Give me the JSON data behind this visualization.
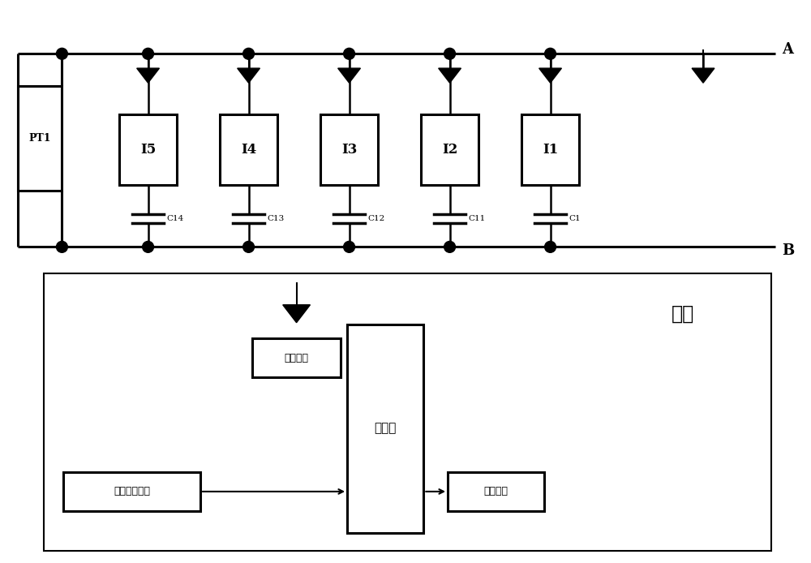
{
  "fig_width": 10.0,
  "fig_height": 6.94,
  "bg_color": "#ffffff",
  "line_color": "#000000",
  "box_fill": "#ffffff",
  "title_A": "A",
  "title_B": "B",
  "pt1_label": "PT1",
  "sensor_labels": [
    "I5",
    "I4",
    "I3",
    "I2",
    "I1"
  ],
  "cap_labels": [
    "C14",
    "C13",
    "C12",
    "C11",
    "C1"
  ],
  "base_station_label": "基站",
  "wireless_label": "无线模块",
  "computer_label": "计算机",
  "interface_label": "接口模块",
  "ref_label": "参考相位模块"
}
